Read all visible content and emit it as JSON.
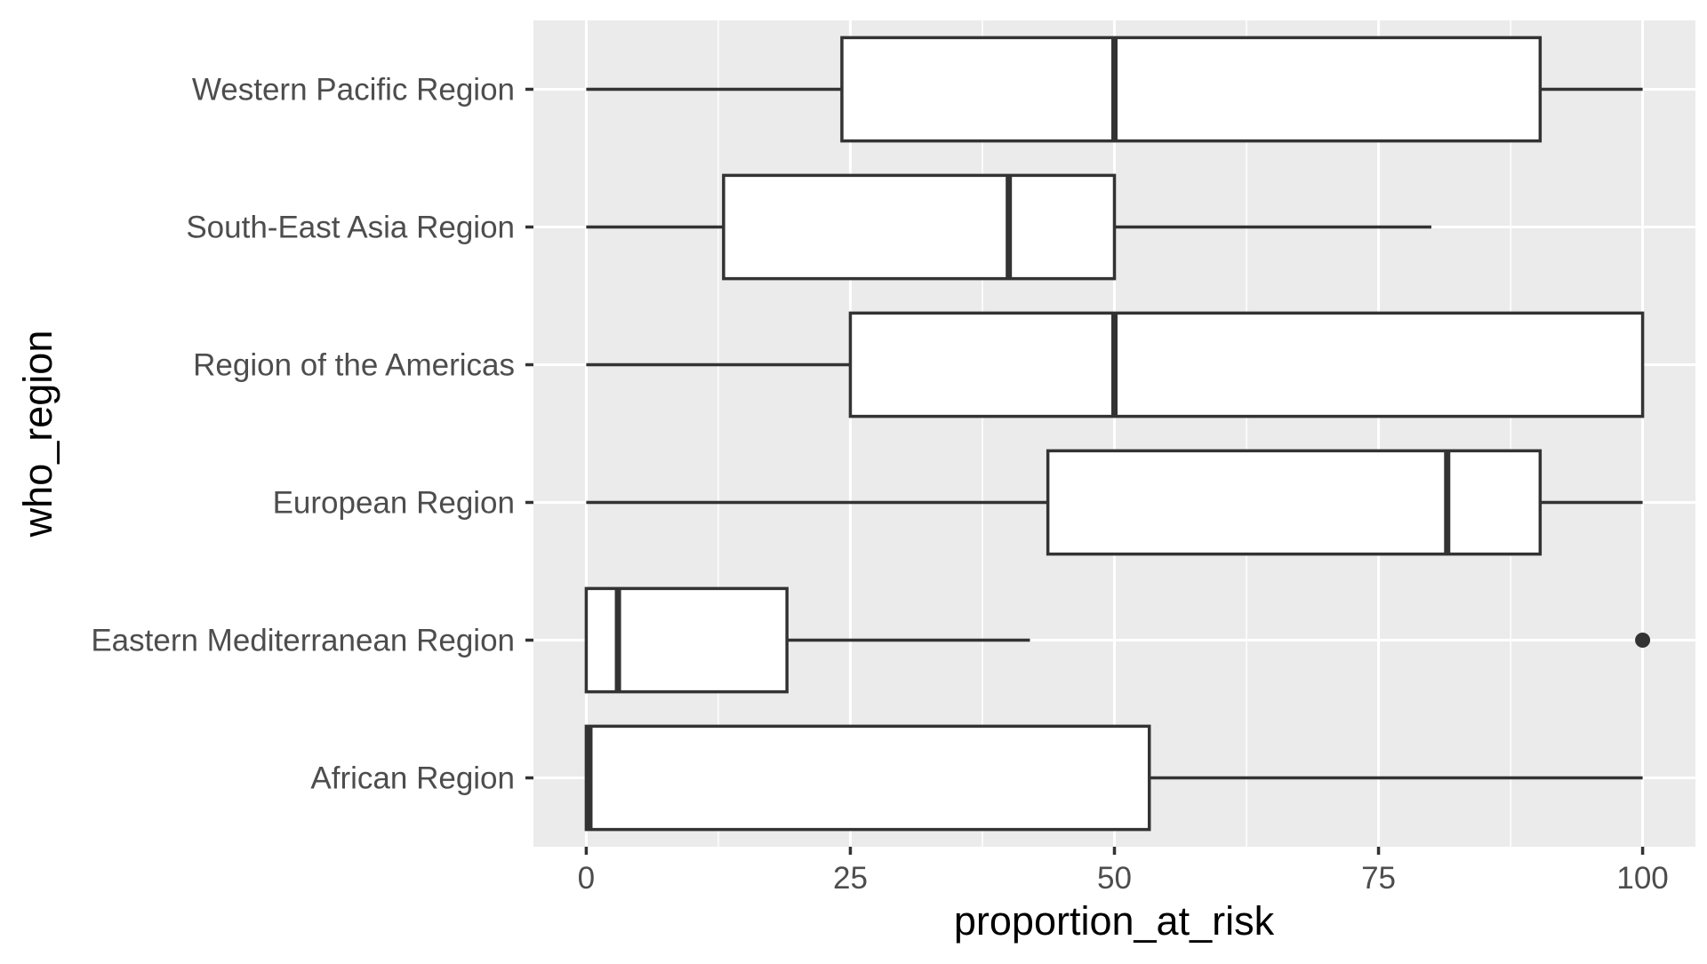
{
  "chart_data": {
    "type": "boxplot",
    "orientation": "horizontal",
    "xlabel": "proportion_at_risk",
    "ylabel": "who_region",
    "xlim": [
      -5,
      105
    ],
    "x_ticks": [
      0,
      25,
      50,
      75,
      100
    ],
    "x_tick_labels": [
      "0",
      "25",
      "50",
      "75",
      "100"
    ],
    "grid": true,
    "panel_color": "#ebebeb",
    "box_fill": "#ffffff",
    "box_stroke": "#333333",
    "categories": [
      "African Region",
      "Eastern Mediterranean Region",
      "European Region",
      "Region of the Americas",
      "South-East Asia Region",
      "Western Pacific Region"
    ],
    "boxes": [
      {
        "category": "African Region",
        "whisker_low": 0,
        "q1": 0,
        "median": 0.3,
        "q3": 53.3,
        "whisker_high": 100,
        "outliers": []
      },
      {
        "category": "Eastern Mediterranean Region",
        "whisker_low": 0,
        "q1": 0,
        "median": 3,
        "q3": 19,
        "whisker_high": 42,
        "outliers": [
          100
        ]
      },
      {
        "category": "European Region",
        "whisker_low": 0,
        "q1": 43.7,
        "median": 81.5,
        "q3": 90.3,
        "whisker_high": 100,
        "outliers": []
      },
      {
        "category": "Region of the Americas",
        "whisker_low": 0,
        "q1": 25,
        "median": 50,
        "q3": 100,
        "whisker_high": 100,
        "outliers": []
      },
      {
        "category": "South-East Asia Region",
        "whisker_low": 0,
        "q1": 13,
        "median": 40,
        "q3": 50,
        "whisker_high": 80,
        "outliers": []
      },
      {
        "category": "Western Pacific Region",
        "whisker_low": 0,
        "q1": 24.2,
        "median": 50,
        "q3": 90.3,
        "whisker_high": 100,
        "outliers": []
      }
    ]
  }
}
